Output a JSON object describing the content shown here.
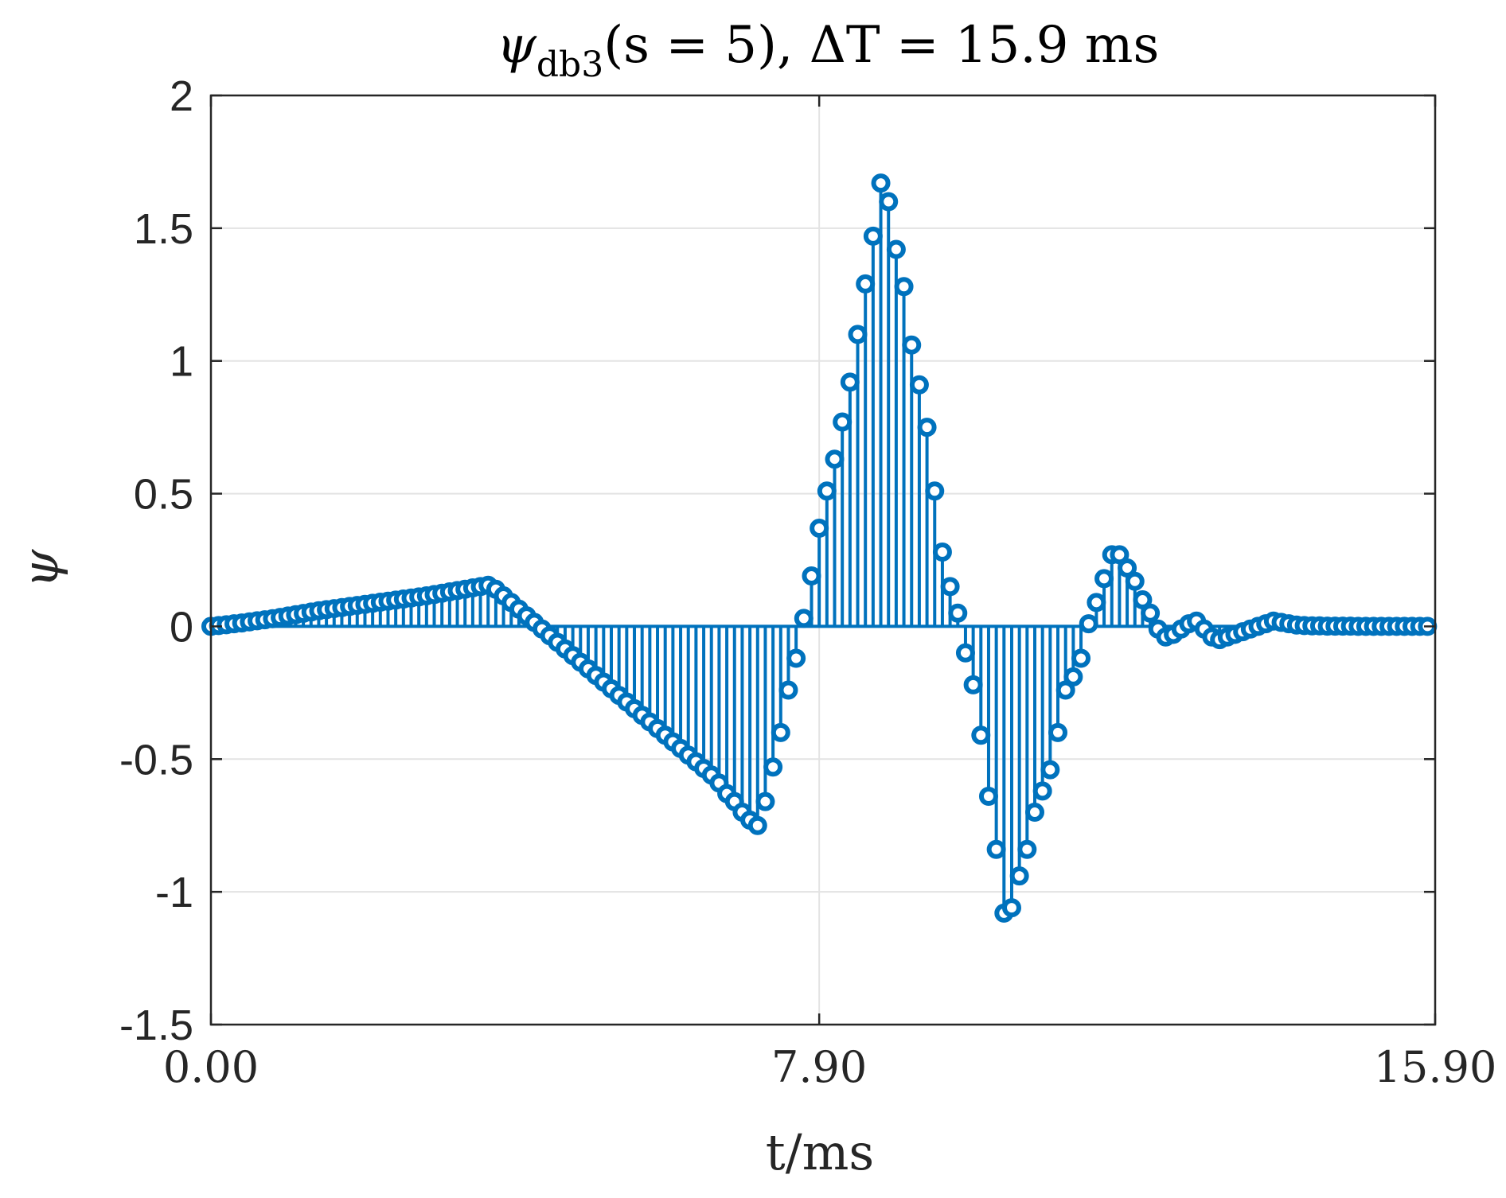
{
  "chart_data": {
    "type": "stem",
    "title": {
      "psi": "ψ",
      "subscript": "db3",
      "rest": "(s = 5), ΔT = 15.9 ms"
    },
    "xlabel": "t/ms",
    "ylabel": "ψ",
    "xlim": [
      0,
      15.9
    ],
    "ylim": [
      -1.5,
      2
    ],
    "xticks": [
      0.0,
      7.9,
      15.9
    ],
    "xtick_labels": [
      "0.00",
      "7.90",
      "15.90"
    ],
    "yticks": [
      -1.5,
      -1,
      -0.5,
      0,
      0.5,
      1,
      1.5,
      2
    ],
    "ytick_labels": [
      "-1.5",
      "-1",
      "-0.5",
      "0",
      "0.5",
      "1",
      "1.5",
      "2"
    ],
    "grid": true,
    "color": "#0072BD",
    "series": [
      {
        "x": [
          0.0,
          0.1,
          0.2,
          0.3,
          0.4,
          0.5,
          0.6,
          0.7,
          0.8,
          0.9,
          1.0,
          1.1,
          1.2,
          1.3,
          1.4,
          1.5,
          1.6,
          1.7,
          1.8,
          1.9,
          2.0,
          2.1,
          2.2,
          2.3,
          2.4,
          2.5,
          2.6,
          2.7,
          2.8,
          2.9,
          3.0,
          3.1,
          3.2,
          3.3,
          3.4,
          3.5,
          3.6,
          3.7,
          3.8,
          3.9,
          4.0,
          4.1,
          4.2,
          4.3,
          4.4,
          4.5,
          4.6,
          4.7,
          4.8,
          4.9,
          5.0,
          5.1,
          5.2,
          5.3,
          5.4,
          5.5,
          5.6,
          5.7,
          5.8,
          5.9,
          6.0,
          6.1,
          6.2,
          6.3,
          6.4,
          6.5,
          6.6,
          6.7,
          6.8,
          6.9,
          7.0,
          7.1,
          7.2,
          7.3,
          7.4,
          7.5,
          7.6,
          7.7,
          7.8,
          7.9,
          8.0,
          8.1,
          8.2,
          8.3,
          8.4,
          8.5,
          8.6,
          8.7,
          8.8,
          8.9,
          9.0,
          9.1,
          9.2,
          9.3,
          9.4,
          9.5,
          9.6,
          9.7,
          9.8,
          9.9,
          10.0,
          10.1,
          10.2,
          10.3,
          10.4,
          10.5,
          10.6,
          10.7,
          10.8,
          10.9,
          11.0,
          11.1,
          11.2,
          11.3,
          11.4,
          11.5,
          11.6,
          11.7,
          11.8,
          11.9,
          12.0,
          12.1,
          12.2,
          12.3,
          12.4,
          12.5,
          12.6,
          12.7,
          12.8,
          12.9,
          13.0,
          13.1,
          13.2,
          13.3,
          13.4,
          13.5,
          13.6,
          13.7,
          13.8,
          13.9,
          14.0,
          14.1,
          14.2,
          14.3,
          14.4,
          14.5,
          14.6,
          14.7,
          14.8,
          14.9,
          15.0,
          15.1,
          15.2,
          15.3,
          15.4,
          15.5,
          15.6,
          15.7,
          15.8
        ],
        "y": [
          0.0,
          0.003,
          0.006,
          0.01,
          0.013,
          0.017,
          0.021,
          0.025,
          0.029,
          0.034,
          0.039,
          0.044,
          0.049,
          0.054,
          0.059,
          0.063,
          0.067,
          0.071,
          0.075,
          0.079,
          0.083,
          0.087,
          0.091,
          0.095,
          0.099,
          0.103,
          0.107,
          0.111,
          0.115,
          0.12,
          0.125,
          0.13,
          0.135,
          0.14,
          0.145,
          0.15,
          0.155,
          0.14,
          0.115,
          0.09,
          0.065,
          0.04,
          0.015,
          -0.01,
          -0.035,
          -0.06,
          -0.085,
          -0.11,
          -0.135,
          -0.16,
          -0.185,
          -0.21,
          -0.235,
          -0.26,
          -0.285,
          -0.31,
          -0.335,
          -0.36,
          -0.385,
          -0.41,
          -0.435,
          -0.46,
          -0.485,
          -0.51,
          -0.535,
          -0.56,
          -0.59,
          -0.63,
          -0.66,
          -0.7,
          -0.73,
          -0.75,
          -0.66,
          -0.53,
          -0.4,
          -0.24,
          -0.12,
          0.03,
          0.19,
          0.37,
          0.51,
          0.63,
          0.77,
          0.92,
          1.1,
          1.29,
          1.47,
          1.67,
          1.6,
          1.42,
          1.28,
          1.06,
          0.91,
          0.75,
          0.51,
          0.28,
          0.15,
          0.05,
          -0.1,
          -0.22,
          -0.41,
          -0.64,
          -0.84,
          -1.08,
          -1.06,
          -0.94,
          -0.84,
          -0.7,
          -0.62,
          -0.54,
          -0.4,
          -0.24,
          -0.19,
          -0.12,
          0.01,
          0.09,
          0.18,
          0.27,
          0.27,
          0.22,
          0.17,
          0.1,
          0.05,
          -0.01,
          -0.04,
          -0.03,
          -0.01,
          0.01,
          0.02,
          -0.01,
          -0.04,
          -0.05,
          -0.04,
          -0.03,
          -0.02,
          -0.01,
          0.0,
          0.01,
          0.02,
          0.015,
          0.01,
          0.005,
          0.003,
          0.002,
          0.002,
          0.001,
          0.001,
          0.001,
          0.001,
          0.0,
          0.0,
          0.0,
          0.0,
          0.0,
          0.0,
          0.0,
          0.0,
          0.0,
          0.0
        ]
      }
    ]
  }
}
